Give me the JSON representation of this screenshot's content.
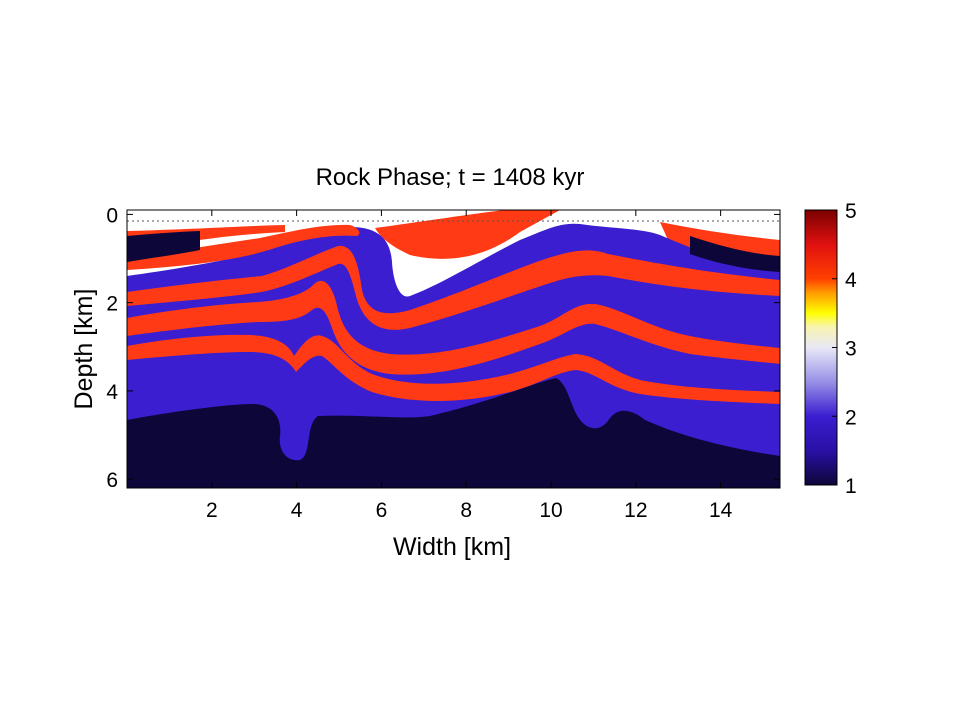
{
  "chart_data": {
    "type": "heatmap",
    "title": "Rock Phase;  t = 1408 kyr",
    "xlabel": "Width [km]",
    "ylabel": "Depth [km]",
    "xlim": [
      0,
      15.4
    ],
    "ylim": [
      6.2,
      -0.1
    ],
    "x_ticks": [
      2,
      4,
      6,
      8,
      10,
      12,
      14
    ],
    "y_ticks": [
      0,
      2,
      4,
      6
    ],
    "surface_reference_depth": 0,
    "colorbar": {
      "range": [
        1,
        5
      ],
      "ticks": [
        1,
        2,
        3,
        4,
        5
      ],
      "stops": [
        {
          "value": 1.0,
          "color": "#0d0638"
        },
        {
          "value": 1.5,
          "color": "#2a10a6"
        },
        {
          "value": 2.0,
          "color": "#3a1ed0"
        },
        {
          "value": 2.5,
          "color": "#9890e6"
        },
        {
          "value": 3.0,
          "color": "#e8e8f6"
        },
        {
          "value": 3.3,
          "color": "#f8f4b0"
        },
        {
          "value": 3.5,
          "color": "#ffff00"
        },
        {
          "value": 3.8,
          "color": "#ff9a00"
        },
        {
          "value": 4.0,
          "color": "#ff4000"
        },
        {
          "value": 4.5,
          "color": "#e01010"
        },
        {
          "value": 5.0,
          "color": "#7a0000"
        }
      ]
    },
    "phases": {
      "air": "#ffffff",
      "basement": "#0d0638",
      "purple_layer": "#3a1ed0",
      "white_layer": "#e8e8f6",
      "red_layer": "#ff3a14"
    }
  }
}
